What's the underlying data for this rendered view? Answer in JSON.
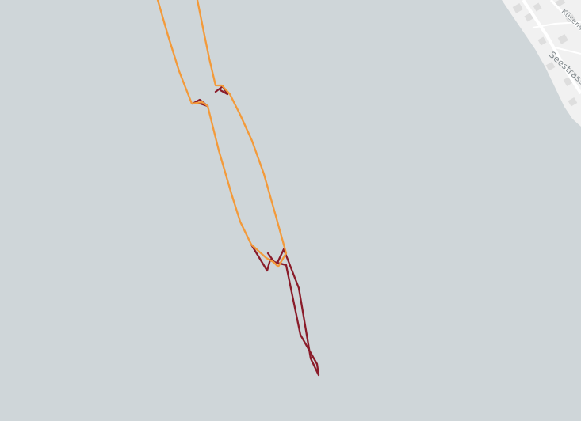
{
  "map": {
    "colors": {
      "water": "#cfd6d9",
      "land": "#f1f1f1",
      "building": "#dedede",
      "road": "#ffffff",
      "route_orange": "#f39a3a",
      "route_dark_red": "#8a1c2a"
    },
    "street_labels": {
      "label_1": "Seestrasse",
      "label_2": "Küsenstrasse"
    },
    "tracks": [
      {
        "name": "route-orange",
        "color": "#f39a3a"
      },
      {
        "name": "route-dark-red",
        "color": "#8a1c2a"
      }
    ]
  }
}
